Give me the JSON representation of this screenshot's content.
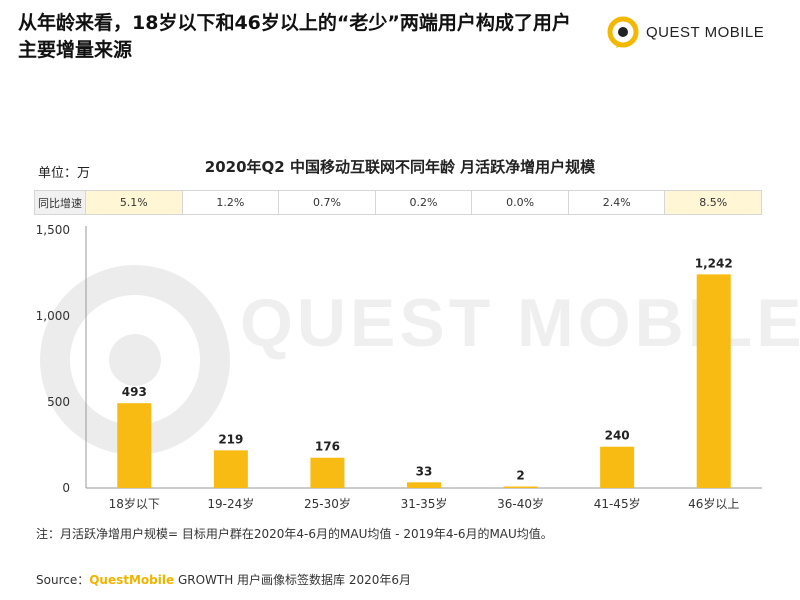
{
  "headline": "从年龄来看，18岁以下和46岁以上的“老少”两端用户构成了用户主要增量来源",
  "logo": {
    "text": "QUEST MOBILE",
    "icon": "questmobile-logo-icon",
    "color": "#f5b800"
  },
  "watermark": "QUEST MOBILE",
  "unit": "单位：万",
  "growth": {
    "label": "同比增速",
    "values": [
      "5.1%",
      "1.2%",
      "0.7%",
      "0.2%",
      "0.0%",
      "2.4%",
      "8.5%"
    ],
    "highlight": [
      true,
      false,
      false,
      false,
      false,
      false,
      true
    ],
    "highlight_color": "#fff6d6"
  },
  "chart_data": {
    "type": "bar",
    "title": "2020年Q2 中国移动互联网不同年龄 月活跃净增用户规模",
    "categories": [
      "18岁以下",
      "19-24岁",
      "25-30岁",
      "31-35岁",
      "36-40岁",
      "41-45岁",
      "46岁以上"
    ],
    "values": [
      493,
      219,
      176,
      33,
      2,
      240,
      1242
    ],
    "value_labels": [
      "493",
      "219",
      "176",
      "33",
      "2",
      "240",
      "1,242"
    ],
    "yticks": [
      "0",
      "500",
      "1,000",
      "1,500"
    ],
    "ytick_values": [
      0,
      500,
      1000,
      1500
    ],
    "ylim": [
      0,
      1500
    ],
    "grid": false,
    "bar_color": "#f7bb13",
    "xlabel": "",
    "ylabel": ""
  },
  "footnote": "注：月活跃净增用户规模= 目标用户群在2020年4-6月的MAU均值 - 2019年4-6月的MAU均值。",
  "source": {
    "prefix": "Source：",
    "brand": "QuestMobile",
    "rest": " GROWTH 用户画像标签数据库 2020年6月"
  }
}
